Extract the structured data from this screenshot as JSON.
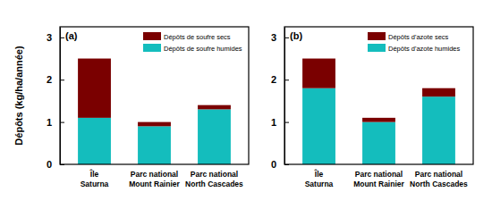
{
  "chart_data": [
    {
      "type": "bar",
      "title": "(a)",
      "y_label": "Dépôts (kg/ha/année)",
      "categories": [
        "Île\nSaturna",
        "Parc national\nMount Rainier",
        "Parc national\nNorth Cascades"
      ],
      "series": [
        {
          "name": "Dépôts de soufre humides",
          "color": "#14bdbd",
          "values": [
            1.1,
            0.9,
            1.3
          ]
        },
        {
          "name": "Dépôts de soufre secs",
          "color": "#7a0000",
          "values": [
            1.4,
            0.1,
            0.1
          ]
        }
      ],
      "ylim": [
        0,
        3.25
      ],
      "yticks": [
        0,
        1,
        2,
        3
      ],
      "stacked": true,
      "legend": "upper right"
    },
    {
      "type": "bar",
      "title": "(b)",
      "categories": [
        "Île\nSaturna",
        "Parc national\nMount Rainier",
        "Parc national\nNorth Cascades"
      ],
      "series": [
        {
          "name": "Dépôts d'azote humides",
          "color": "#14bdbd",
          "values": [
            1.8,
            1.0,
            1.6
          ]
        },
        {
          "name": "Dépôts d'azote secs",
          "color": "#7a0000",
          "values": [
            0.7,
            0.1,
            0.2
          ]
        }
      ],
      "ylim": [
        0,
        3.25
      ],
      "yticks": [
        0,
        1,
        2,
        3
      ],
      "stacked": true,
      "legend": "upper right"
    }
  ]
}
